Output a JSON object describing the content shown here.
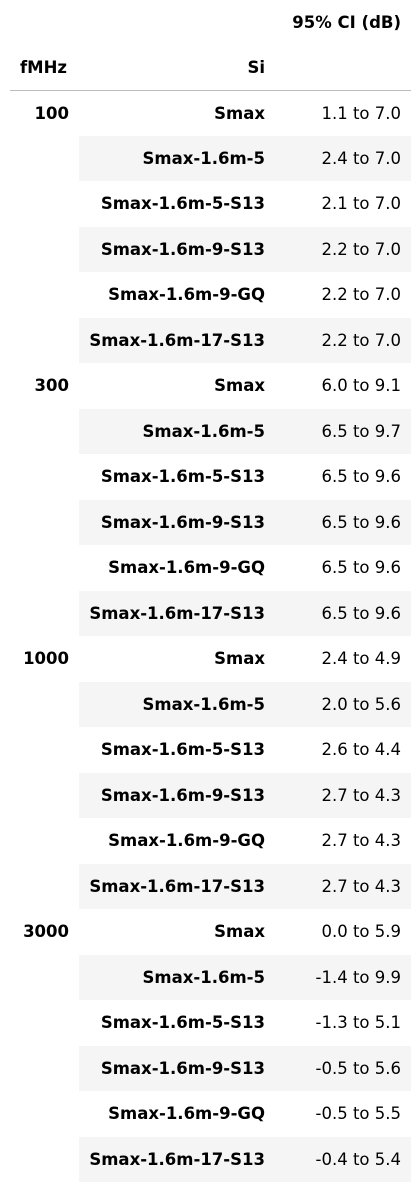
{
  "table": {
    "header": {
      "ci_label": "95% CI (dB)",
      "fmhz_label": "fMHz",
      "si_label": "Si"
    },
    "groups": [
      {
        "fmhz": "100",
        "rows": [
          {
            "si": "Smax",
            "ci": "1.1 to 7.0"
          },
          {
            "si": "Smax-1.6m-5",
            "ci": "2.4 to 7.0"
          },
          {
            "si": "Smax-1.6m-5-S13",
            "ci": "2.1 to 7.0"
          },
          {
            "si": "Smax-1.6m-9-S13",
            "ci": "2.2 to 7.0"
          },
          {
            "si": "Smax-1.6m-9-GQ",
            "ci": "2.2 to 7.0"
          },
          {
            "si": "Smax-1.6m-17-S13",
            "ci": "2.2 to 7.0"
          }
        ]
      },
      {
        "fmhz": "300",
        "rows": [
          {
            "si": "Smax",
            "ci": "6.0 to 9.1"
          },
          {
            "si": "Smax-1.6m-5",
            "ci": "6.5 to 9.7"
          },
          {
            "si": "Smax-1.6m-5-S13",
            "ci": "6.5 to 9.6"
          },
          {
            "si": "Smax-1.6m-9-S13",
            "ci": "6.5 to 9.6"
          },
          {
            "si": "Smax-1.6m-9-GQ",
            "ci": "6.5 to 9.6"
          },
          {
            "si": "Smax-1.6m-17-S13",
            "ci": "6.5 to 9.6"
          }
        ]
      },
      {
        "fmhz": "1000",
        "rows": [
          {
            "si": "Smax",
            "ci": "2.4 to 4.9"
          },
          {
            "si": "Smax-1.6m-5",
            "ci": "2.0 to 5.6"
          },
          {
            "si": "Smax-1.6m-5-S13",
            "ci": "2.6 to 4.4"
          },
          {
            "si": "Smax-1.6m-9-S13",
            "ci": "2.7 to 4.3"
          },
          {
            "si": "Smax-1.6m-9-GQ",
            "ci": "2.7 to 4.3"
          },
          {
            "si": "Smax-1.6m-17-S13",
            "ci": "2.7 to 4.3"
          }
        ]
      },
      {
        "fmhz": "3000",
        "rows": [
          {
            "si": "Smax",
            "ci": "0.0 to 5.9"
          },
          {
            "si": "Smax-1.6m-5",
            "ci": "-1.4 to 9.9"
          },
          {
            "si": "Smax-1.6m-5-S13",
            "ci": "-1.3 to 5.1"
          },
          {
            "si": "Smax-1.6m-9-S13",
            "ci": "-0.5 to 5.6"
          },
          {
            "si": "Smax-1.6m-9-GQ",
            "ci": "-0.5 to 5.5"
          },
          {
            "si": "Smax-1.6m-17-S13",
            "ci": "-0.4 to 5.4"
          }
        ]
      }
    ]
  }
}
